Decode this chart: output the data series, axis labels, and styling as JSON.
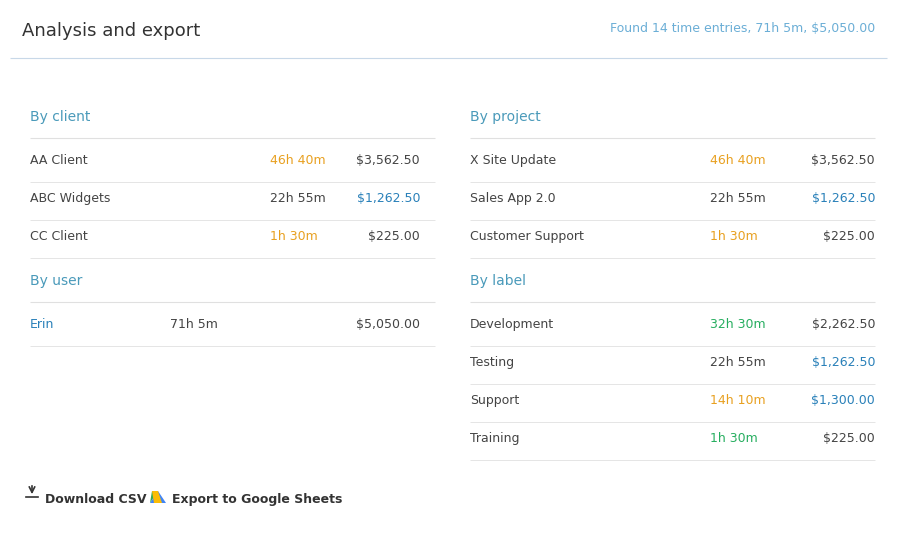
{
  "title": "Analysis and export",
  "summary": "Found 14 time entries, 71h 5m, $5,050.00",
  "bg_color": "#ffffff",
  "title_color": "#333333",
  "summary_color": "#6baed6",
  "section_header_color": "#4a9aba",
  "divider_color": "#e0e0e0",
  "by_client": {
    "header": "By client",
    "rows": [
      {
        "name": "AA Client",
        "time": "46h 40m",
        "time_color": "#e8a020",
        "amount": "$3,562.50",
        "amount_color": "#444444"
      },
      {
        "name": "ABC Widgets",
        "time": "22h 55m",
        "time_color": "#444444",
        "amount": "$1,262.50",
        "amount_color": "#2980b9"
      },
      {
        "name": "CC Client",
        "time": "1h 30m",
        "time_color": "#e8a020",
        "amount": "$225.00",
        "amount_color": "#444444"
      }
    ]
  },
  "by_user": {
    "header": "By user",
    "rows": [
      {
        "name": "Erin",
        "name_color": "#2980b9",
        "time": "71h 5m",
        "time_color": "#444444",
        "amount": "$5,050.00",
        "amount_color": "#444444"
      }
    ]
  },
  "by_project": {
    "header": "By project",
    "rows": [
      {
        "name": "X Site Update",
        "time": "46h 40m",
        "time_color": "#e8a020",
        "amount": "$3,562.50",
        "amount_color": "#444444"
      },
      {
        "name": "Sales App 2.0",
        "time": "22h 55m",
        "time_color": "#444444",
        "amount": "$1,262.50",
        "amount_color": "#2980b9"
      },
      {
        "name": "Customer Support",
        "time": "1h 30m",
        "time_color": "#e8a020",
        "amount": "$225.00",
        "amount_color": "#444444"
      }
    ]
  },
  "by_label": {
    "header": "By label",
    "rows": [
      {
        "name": "Development",
        "time": "32h 30m",
        "time_color": "#27ae60",
        "amount": "$2,262.50",
        "amount_color": "#444444"
      },
      {
        "name": "Testing",
        "time": "22h 55m",
        "time_color": "#444444",
        "amount": "$1,262.50",
        "amount_color": "#2980b9"
      },
      {
        "name": "Support",
        "time": "14h 10m",
        "time_color": "#e8a020",
        "amount": "$1,300.00",
        "amount_color": "#2980b9"
      },
      {
        "name": "Training",
        "time": "1h 30m",
        "time_color": "#27ae60",
        "amount": "$225.00",
        "amount_color": "#444444"
      }
    ]
  },
  "footer_csv": "Download CSV",
  "footer_sheets": "Export to Google Sheets",
  "text_color": "#444444",
  "figsize": [
    8.97,
    5.33
  ],
  "dpi": 100
}
